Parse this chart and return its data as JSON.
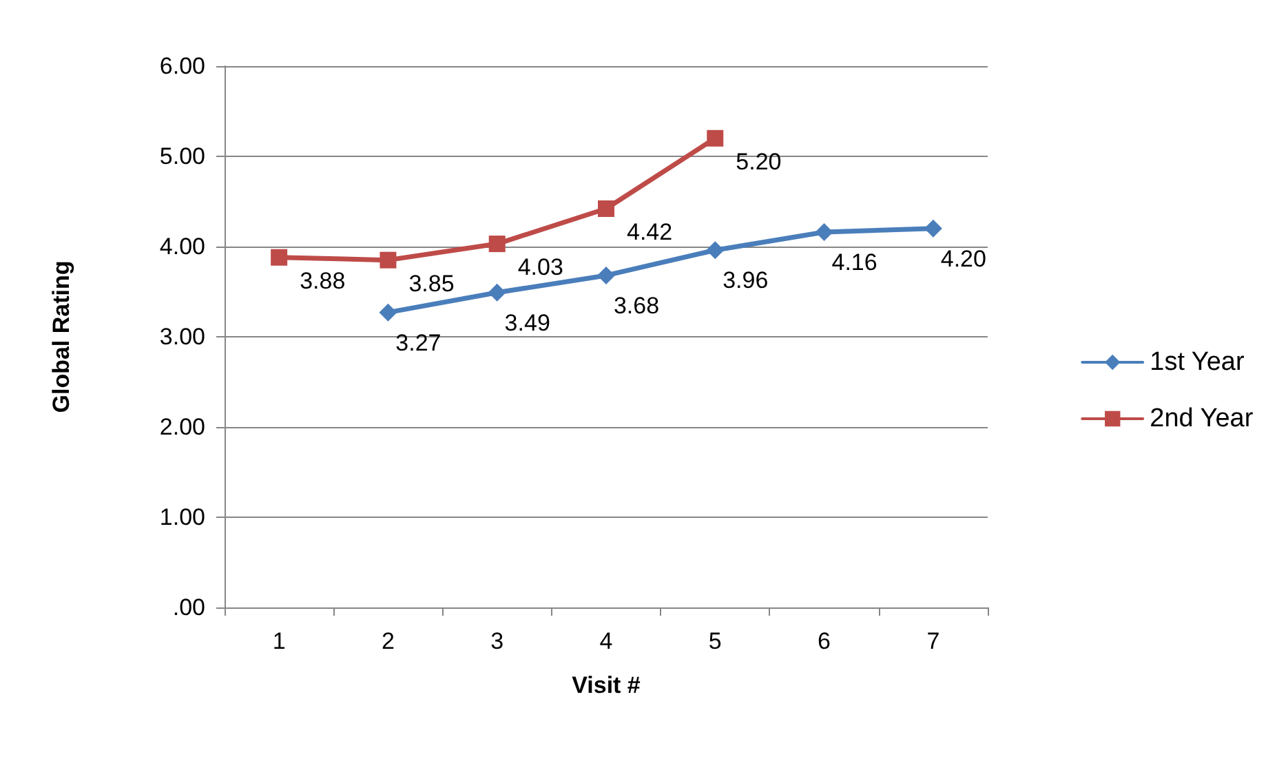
{
  "chart_data": {
    "type": "line",
    "xlabel": "Visit #",
    "ylabel": "Global Rating",
    "categories": [
      "1",
      "2",
      "3",
      "4",
      "5",
      "6",
      "7"
    ],
    "series": [
      {
        "name": "1st Year",
        "color": "#4a7ebb",
        "marker": "diamond",
        "values": [
          null,
          3.27,
          3.49,
          3.68,
          3.96,
          4.16,
          4.2
        ],
        "value_labels": [
          null,
          "3.27",
          "3.49",
          "3.68",
          "3.96",
          "4.16",
          "4.20"
        ]
      },
      {
        "name": "2nd Year",
        "color": "#be4b48",
        "marker": "square",
        "values": [
          3.88,
          3.85,
          4.03,
          4.42,
          5.2,
          null,
          null
        ],
        "value_labels": [
          "3.88",
          "3.85",
          "4.03",
          "4.42",
          "5.20",
          null,
          null
        ]
      }
    ],
    "ylim": [
      0,
      6
    ],
    "yticks": [
      {
        "value": 0,
        "label": ".00"
      },
      {
        "value": 1,
        "label": "1.00"
      },
      {
        "value": 2,
        "label": "2.00"
      },
      {
        "value": 3,
        "label": "3.00"
      },
      {
        "value": 4,
        "label": "4.00"
      },
      {
        "value": 5,
        "label": "5.00"
      },
      {
        "value": 6,
        "label": "6.00"
      }
    ],
    "grid": "y",
    "legend": "right"
  }
}
